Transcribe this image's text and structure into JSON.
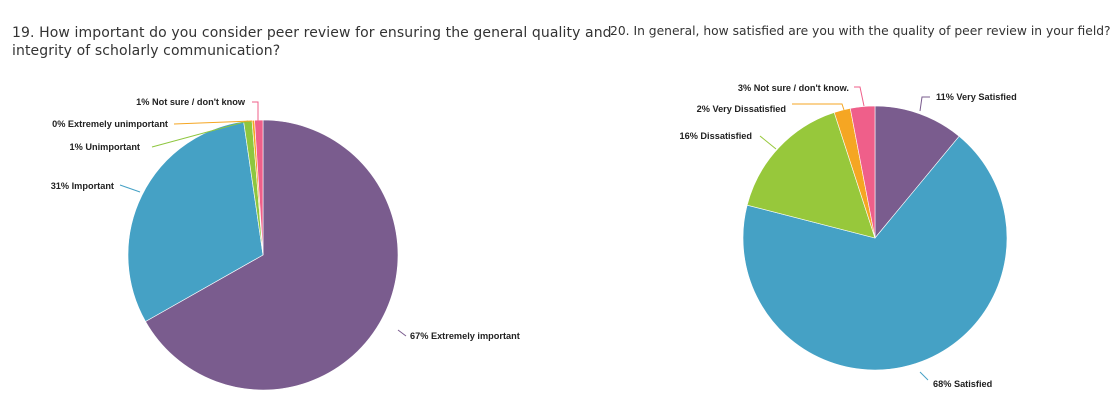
{
  "chart_data": [
    {
      "type": "pie",
      "title_lines": [
        "19. How important do you consider peer review for ensuring the general quality and",
        "integrity of scholarly communication?"
      ],
      "start_angle_deg": 0,
      "slices": [
        {
          "category": "Extremely important",
          "label": "67% Extremely important",
          "value": 67,
          "color": "#7a5c8e"
        },
        {
          "category": "Important",
          "label": "31% Important",
          "value": 31,
          "color": "#45a1c5"
        },
        {
          "category": "Unimportant",
          "label": "1% Unimportant",
          "value": 1,
          "color": "#8ec63f"
        },
        {
          "category": "Extremely unimportant",
          "label": "0% Extremely unimportant",
          "value": 0.3,
          "color": "#f5a623"
        },
        {
          "category": "Not sure / don't know",
          "label": "1% Not sure / don't know",
          "value": 1,
          "color": "#ef5f8a"
        }
      ]
    },
    {
      "type": "pie",
      "title_lines": [
        "20. In general, how satisfied are you with the quality of peer review in your field?"
      ],
      "start_angle_deg": 0,
      "slices": [
        {
          "category": "Very Satisfied",
          "label": "11% Very Satisfied",
          "value": 11,
          "color": "#7a5c8e"
        },
        {
          "category": "Satisfied",
          "label": "68% Satisfied",
          "value": 68,
          "color": "#45a1c5"
        },
        {
          "category": "Dissatisfied",
          "label": "16% Dissatisfied",
          "value": 16,
          "color": "#97c83b"
        },
        {
          "category": "Very Dissatisfied",
          "label": "2% Very Dissatisfied",
          "value": 2,
          "color": "#f5a623"
        },
        {
          "category": "Not sure / don't know.",
          "label": "3% Not sure / don't know.",
          "value": 3,
          "color": "#ef5f8a"
        }
      ]
    }
  ]
}
